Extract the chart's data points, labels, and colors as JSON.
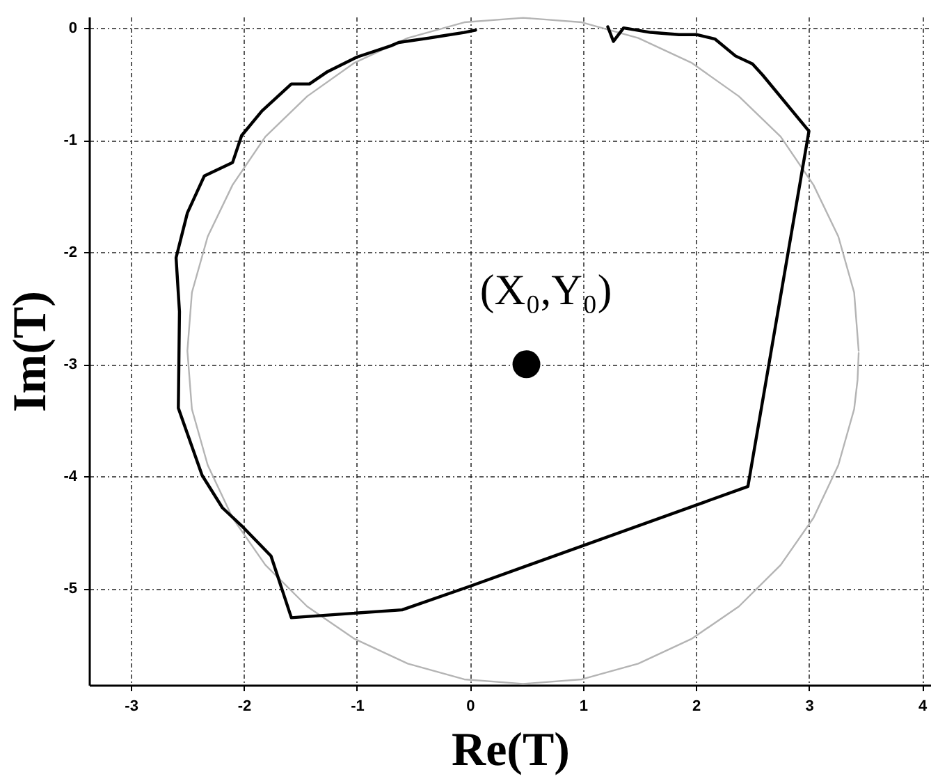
{
  "chart_data": {
    "type": "line",
    "xlabel": "Re(T)",
    "ylabel": "Im(T)",
    "xlim": [
      -3.37,
      4.08
    ],
    "ylim": [
      -5.86,
      0.1
    ],
    "xticks": [
      -3,
      -2,
      -1,
      0,
      1,
      2,
      3,
      4
    ],
    "yticks": [
      -5,
      -4,
      -3,
      -2,
      -1,
      0
    ],
    "grid": true,
    "series": [
      {
        "type": "line",
        "color": "#b4b4b4",
        "x": [
          3.44,
          3.4,
          3.26,
          3.04,
          2.75,
          2.38,
          1.96,
          1.49,
          0.99,
          0.47,
          -0.05,
          -0.55,
          -1.02,
          -1.44,
          -1.81,
          -2.1,
          -2.32,
          -2.46,
          -2.5,
          -2.46,
          -2.32,
          -2.1,
          -1.81,
          -1.44,
          -1.02,
          -0.55,
          -0.05,
          0.47,
          0.99,
          1.49,
          1.96,
          2.38,
          2.75,
          3.04,
          3.26,
          3.4,
          3.43,
          3.44
        ],
        "values": [
          -2.88,
          -2.36,
          -1.86,
          -1.4,
          -0.97,
          -0.61,
          -0.31,
          -0.09,
          0.05,
          0.09,
          0.05,
          -0.09,
          -0.31,
          -0.61,
          -0.97,
          -1.4,
          -1.86,
          -2.36,
          -2.88,
          -3.4,
          -3.9,
          -4.37,
          -4.79,
          -5.16,
          -5.45,
          -5.67,
          -5.81,
          -5.85,
          -5.81,
          -5.67,
          -5.45,
          -5.16,
          -4.79,
          -4.37,
          -3.9,
          -3.4,
          -3.14,
          -2.9
        ]
      },
      {
        "type": "line",
        "color": "#000000",
        "x": [
          0.05,
          -0.05,
          -0.3,
          -0.36,
          -0.63,
          -0.7,
          -1.0,
          -1.26,
          -1.42,
          -1.58,
          -1.84,
          -2.02,
          -2.1,
          -2.35,
          -2.5,
          -2.6,
          -2.57,
          -2.58,
          -2.37,
          -2.19,
          -2.02,
          -1.76,
          -1.58,
          -0.6,
          0.0,
          2.46,
          3.0,
          2.59,
          2.5,
          2.35,
          2.17,
          2.01,
          1.85,
          1.6,
          1.36,
          1.27,
          1.22
        ],
        "values": [
          -0.02,
          -0.04,
          -0.08,
          -0.09,
          -0.13,
          -0.16,
          -0.26,
          -0.39,
          -0.5,
          -0.5,
          -0.74,
          -0.96,
          -1.2,
          -1.32,
          -1.65,
          -2.05,
          -2.53,
          -3.39,
          -3.99,
          -4.28,
          -4.44,
          -4.71,
          -5.26,
          -5.19,
          -4.98,
          -4.09,
          -0.92,
          -0.42,
          -0.32,
          -0.25,
          -0.1,
          -0.06,
          -0.06,
          -0.04,
          0.0,
          -0.12,
          0.01
        ]
      },
      {
        "type": "scatter",
        "color": "#000000",
        "marker": "circle",
        "x": [
          0.5
        ],
        "values": [
          -3
        ]
      }
    ],
    "annotations": [
      {
        "text": "(X₀,Y₀)",
        "x": 0.5,
        "y": -3
      }
    ]
  }
}
